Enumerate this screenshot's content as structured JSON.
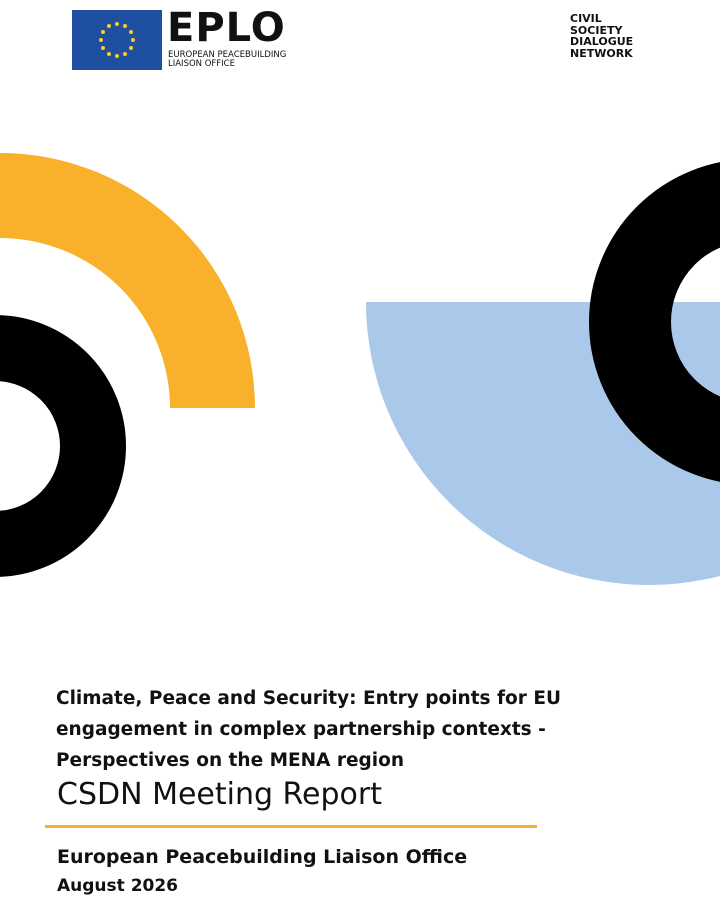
{
  "header": {
    "logo_name": "EPLO",
    "logo_subtitle": "European Peacebuilding Liaison Office",
    "network": "CIVIL SOCIETY DIALOGUE NETWORK"
  },
  "cover": {
    "title": "Climate, Peace and Security: Entry points for EU engagement in complex partnership contexts - Perspectives on the MENA region",
    "report_type": "CSDN Meeting Report",
    "organization": "European Peacebuilding Liaison Office",
    "date": "August 2026"
  }
}
